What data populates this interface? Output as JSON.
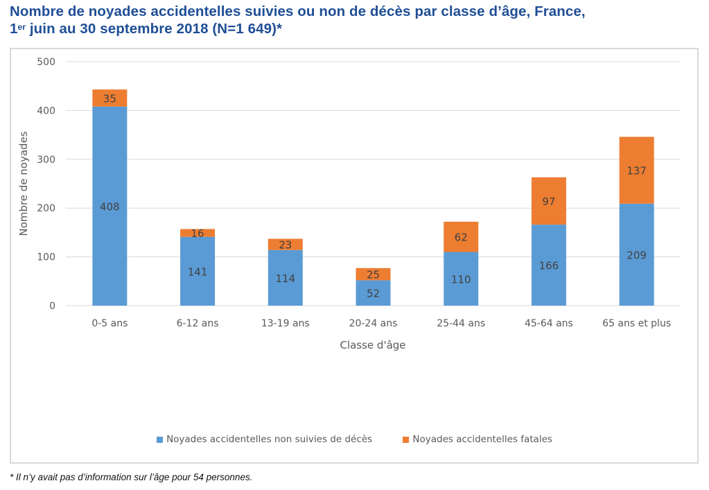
{
  "title": {
    "line1": "Nombre de noyades accidentelles suivies ou non de décès par classe d’âge, France,",
    "line2_prefix": "1",
    "line2_sup": "er",
    "line2_rest": " juin au 30 septembre 2018 (N=1 649)*"
  },
  "footnote": "* Il n’y avait pas d’information sur l’âge pour 54 personnes.",
  "colors": {
    "non_fatal": "#5B9BD5",
    "fatal": "#ED7D31",
    "grid": "#D9D9D9",
    "axis_text": "#595959",
    "label_text": "#404040",
    "title": "#1F4E96"
  },
  "chart_data": {
    "type": "bar",
    "stacked": true,
    "title": "Nombre de noyades accidentelles suivies ou non de décès par classe d’âge, France, 1er juin au 30 septembre 2018 (N=1 649)*",
    "xlabel": "Classe d'âge",
    "ylabel": "Nombre de noyades",
    "ylim": [
      0,
      500
    ],
    "yticks": [
      0,
      100,
      200,
      300,
      400,
      500
    ],
    "ytick_labels": [
      "0",
      "100",
      "200",
      "300",
      "400",
      "500"
    ],
    "grid": true,
    "legend_position": "bottom",
    "categories": [
      "0-5 ans",
      "6-12 ans",
      "13-19 ans",
      "20-24 ans",
      "25-44 ans",
      "45-64 ans",
      "65 ans et plus"
    ],
    "series": [
      {
        "name": "Noyades accidentelles non suivies de décès",
        "color": "#5B9BD5",
        "values": [
          408,
          141,
          114,
          52,
          110,
          166,
          209
        ]
      },
      {
        "name": "Noyades accidentelles fatales",
        "color": "#ED7D31",
        "values": [
          35,
          16,
          23,
          25,
          62,
          97,
          137
        ]
      }
    ]
  }
}
